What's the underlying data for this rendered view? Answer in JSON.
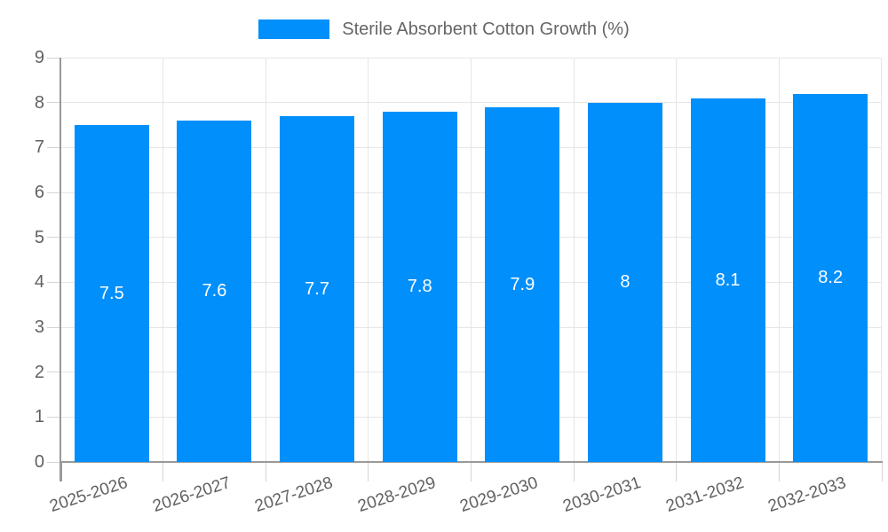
{
  "legend": {
    "label": "Sterile Absorbent Cotton Growth (%)"
  },
  "colors": {
    "bar": "#008FFB",
    "grid": "#e6e6e6",
    "axis": "#999999",
    "tick": "#d4d4d4",
    "axis_label_text": "#616161",
    "legend_text": "#666666",
    "value_label_text": "#ffffff",
    "background": "#ffffff"
  },
  "chart_data": {
    "type": "bar",
    "title": "Sterile Absorbent Cotton Growth (%)",
    "categories": [
      "2025-2026",
      "2026-2027",
      "2027-2028",
      "2028-2029",
      "2029-2030",
      "2030-2031",
      "2031-2032",
      "2032-2033"
    ],
    "values": [
      7.5,
      7.6,
      7.7,
      7.8,
      7.9,
      8,
      8.1,
      8.2
    ],
    "value_labels": [
      "7.5",
      "7.6",
      "7.7",
      "7.8",
      "7.9",
      "8",
      "8.1",
      "8.2"
    ],
    "xlabel": "",
    "ylabel": "",
    "ylim": [
      0,
      9
    ],
    "y_ticks": [
      0,
      1,
      2,
      3,
      4,
      5,
      6,
      7,
      8,
      9
    ],
    "grid": true,
    "legend_position": "top",
    "value_labels_position": "inside-center",
    "x_label_rotation_deg": -18
  }
}
